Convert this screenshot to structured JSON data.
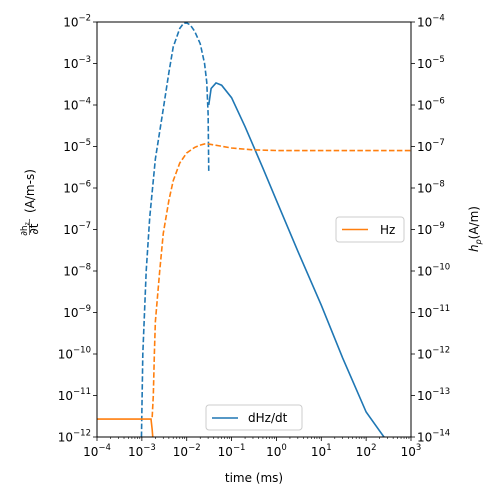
{
  "chart_data": {
    "type": "line",
    "title": "",
    "xlabel": "time (ms)",
    "ylabel_left": "∂h_z/∂t (A/m-s)",
    "ylabel_left_num": "∂h",
    "ylabel_left_num_sub": "z",
    "ylabel_left_den": "∂t",
    "ylabel_left_unit": "(A/m-s)",
    "ylabel_right": "h_p (A/m)",
    "ylabel_right_main": "h",
    "ylabel_right_sub": "p",
    "ylabel_right_unit": "(A/m)",
    "x_scale": "log",
    "y_scale": "log",
    "xlim": [
      0.0001,
      1000
    ],
    "ylim_left": [
      1e-12,
      0.01
    ],
    "ylim_right": [
      1e-14,
      0.0001
    ],
    "x_ticks": [
      -4,
      -3,
      -2,
      -1,
      0,
      1,
      2,
      3
    ],
    "y_ticks_left": [
      -12,
      -11,
      -10,
      -9,
      -8,
      -7,
      -6,
      -5,
      -4,
      -3,
      -2
    ],
    "y_ticks_right": [
      -14,
      -13,
      -12,
      -11,
      -10,
      -9,
      -8,
      -7,
      -6,
      -5,
      -4
    ],
    "tick_base": "10",
    "grid": false,
    "legends": [
      {
        "label": "dHz/dt",
        "color": "#1f77b4",
        "placement": "lower-center"
      },
      {
        "label": "Hz",
        "color": "#ff7f0e",
        "placement": "center-right"
      }
    ],
    "series": [
      {
        "name": "dHz/dt",
        "axis": "left",
        "color": "#1f77b4",
        "segments": [
          {
            "style": "dashed",
            "points": [
              [
                0.00098,
                1e-12
              ],
              [
                0.00105,
                1e-10
              ],
              [
                0.00125,
                1e-08
              ],
              [
                0.0015,
                2e-07
              ],
              [
                0.002,
                5e-06
              ],
              [
                0.003,
                8e-05
              ],
              [
                0.004,
                0.0006
              ],
              [
                0.005,
                0.0025
              ],
              [
                0.007,
                0.007
              ],
              [
                0.0085,
                0.0093
              ],
              [
                0.01,
                0.0095
              ],
              [
                0.012,
                0.0085
              ],
              [
                0.015,
                0.006
              ],
              [
                0.02,
                0.003
              ],
              [
                0.025,
                0.001
              ],
              [
                0.028,
                0.00035
              ],
              [
                0.03,
                6e-05
              ],
              [
                0.031,
                2.5e-06
              ]
            ]
          },
          {
            "style": "solid",
            "points": [
              [
                0.031,
                0.0001
              ],
              [
                0.035,
                0.00025
              ],
              [
                0.045,
                0.00034
              ],
              [
                0.06,
                0.0003
              ],
              [
                0.1,
                0.00015
              ],
              [
                0.2,
                3e-05
              ],
              [
                0.5,
                3e-06
              ],
              [
                1,
                5e-07
              ],
              [
                3,
                3e-08
              ],
              [
                10,
                1.5e-09
              ],
              [
                30,
                8e-11
              ],
              [
                100,
                4e-12
              ],
              [
                250,
                1e-12
              ]
            ]
          }
        ]
      },
      {
        "name": "Hz",
        "axis": "right",
        "color": "#ff7f0e",
        "segments": [
          {
            "style": "solid",
            "points": [
              [
                0.0001,
                2.7e-14
              ],
              [
                0.0016,
                2.7e-14
              ],
              [
                0.0017,
                1.5e-14
              ],
              [
                0.00175,
                1e-14
              ]
            ]
          },
          {
            "style": "dashed",
            "points": [
              [
                0.0017,
                3e-14
              ],
              [
                0.0018,
                1e-13
              ],
              [
                0.0019,
                1e-12
              ],
              [
                0.002,
                6e-12
              ],
              [
                0.0025,
                1e-10
              ],
              [
                0.003,
                8e-10
              ],
              [
                0.004,
                5e-09
              ],
              [
                0.005,
                1.5e-08
              ],
              [
                0.007,
                4e-08
              ],
              [
                0.01,
                7e-08
              ],
              [
                0.015,
                9.5e-08
              ],
              [
                0.02,
                1.08e-07
              ],
              [
                0.025,
                1.15e-07
              ],
              [
                0.03,
                1.15e-07
              ],
              [
                0.05,
                1.05e-07
              ],
              [
                0.1,
                9.2e-08
              ],
              [
                0.3,
                8.3e-08
              ],
              [
                1,
                8e-08
              ],
              [
                10,
                8e-08
              ],
              [
                100,
                8e-08
              ],
              [
                1000,
                8e-08
              ]
            ]
          }
        ]
      }
    ]
  }
}
